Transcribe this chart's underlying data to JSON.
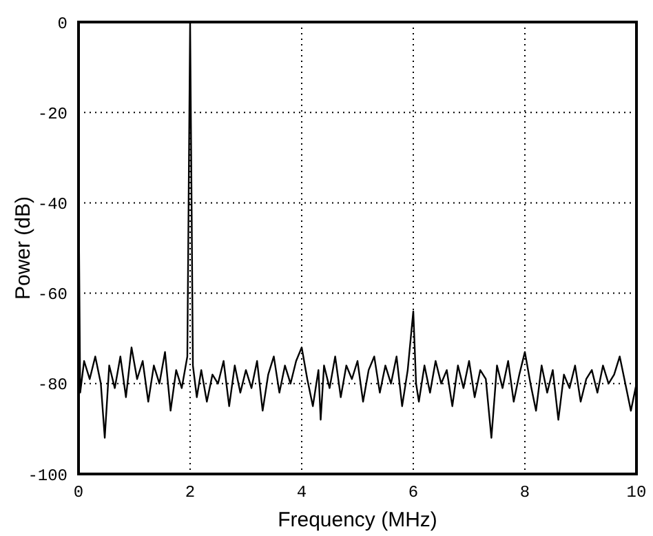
{
  "chart_data": {
    "type": "line",
    "xlabel": "Frequency (MHz)",
    "ylabel": "Power (dB)",
    "xlim": [
      0,
      10
    ],
    "xticks": [
      0,
      2,
      4,
      6,
      8,
      10
    ],
    "ylim": [
      -100,
      0
    ],
    "yticks": [
      0,
      -20,
      -40,
      -60,
      -80,
      -100
    ],
    "grid": true,
    "marker": "none",
    "line_style": "solid",
    "series": [
      {
        "color": "#000000",
        "x": [
          0,
          0.03,
          0.1,
          0.2,
          0.3,
          0.4,
          0.47,
          0.55,
          0.65,
          0.75,
          0.85,
          0.95,
          1.05,
          1.15,
          1.25,
          1.35,
          1.45,
          1.55,
          1.65,
          1.75,
          1.85,
          1.95,
          2.0,
          2.05,
          2.12,
          2.2,
          2.3,
          2.4,
          2.5,
          2.6,
          2.7,
          2.8,
          2.9,
          3.0,
          3.1,
          3.2,
          3.3,
          3.4,
          3.5,
          3.6,
          3.7,
          3.8,
          3.9,
          4.0,
          4.1,
          4.2,
          4.3,
          4.34,
          4.4,
          4.5,
          4.6,
          4.7,
          4.8,
          4.9,
          5.0,
          5.1,
          5.2,
          5.3,
          5.4,
          5.5,
          5.6,
          5.7,
          5.8,
          5.9,
          6.0,
          6.05,
          6.1,
          6.2,
          6.3,
          6.4,
          6.5,
          6.6,
          6.7,
          6.8,
          6.9,
          7.0,
          7.1,
          7.2,
          7.3,
          7.4,
          7.5,
          7.6,
          7.7,
          7.8,
          7.9,
          8.0,
          8.1,
          8.2,
          8.3,
          8.4,
          8.5,
          8.6,
          8.7,
          8.8,
          8.9,
          9.0,
          9.1,
          9.2,
          9.3,
          9.4,
          9.5,
          9.6,
          9.7,
          9.8,
          9.9,
          10.0
        ],
        "values": [
          -35,
          -82,
          -75,
          -79,
          -74,
          -80,
          -92,
          -76,
          -81,
          -74,
          -83,
          -72,
          -79,
          -75,
          -84,
          -76,
          -80,
          -73,
          -86,
          -77,
          -81,
          -74,
          0,
          -76,
          -83,
          -77,
          -84,
          -78,
          -80,
          -75,
          -85,
          -76,
          -82,
          -77,
          -81,
          -75,
          -86,
          -78,
          -74,
          -82,
          -76,
          -80,
          -75,
          -72,
          -79,
          -85,
          -77,
          -88,
          -76,
          -81,
          -74,
          -83,
          -76,
          -79,
          -75,
          -84,
          -77,
          -74,
          -82,
          -76,
          -80,
          -74,
          -85,
          -77,
          -64,
          -80,
          -84,
          -76,
          -82,
          -75,
          -80,
          -77,
          -85,
          -76,
          -81,
          -75,
          -83,
          -77,
          -79,
          -92,
          -76,
          -81,
          -75,
          -84,
          -78,
          -73,
          -80,
          -86,
          -76,
          -82,
          -77,
          -88,
          -78,
          -81,
          -76,
          -84,
          -79,
          -77,
          -82,
          -76,
          -80,
          -78,
          -74,
          -80,
          -86,
          -80
        ]
      }
    ]
  }
}
